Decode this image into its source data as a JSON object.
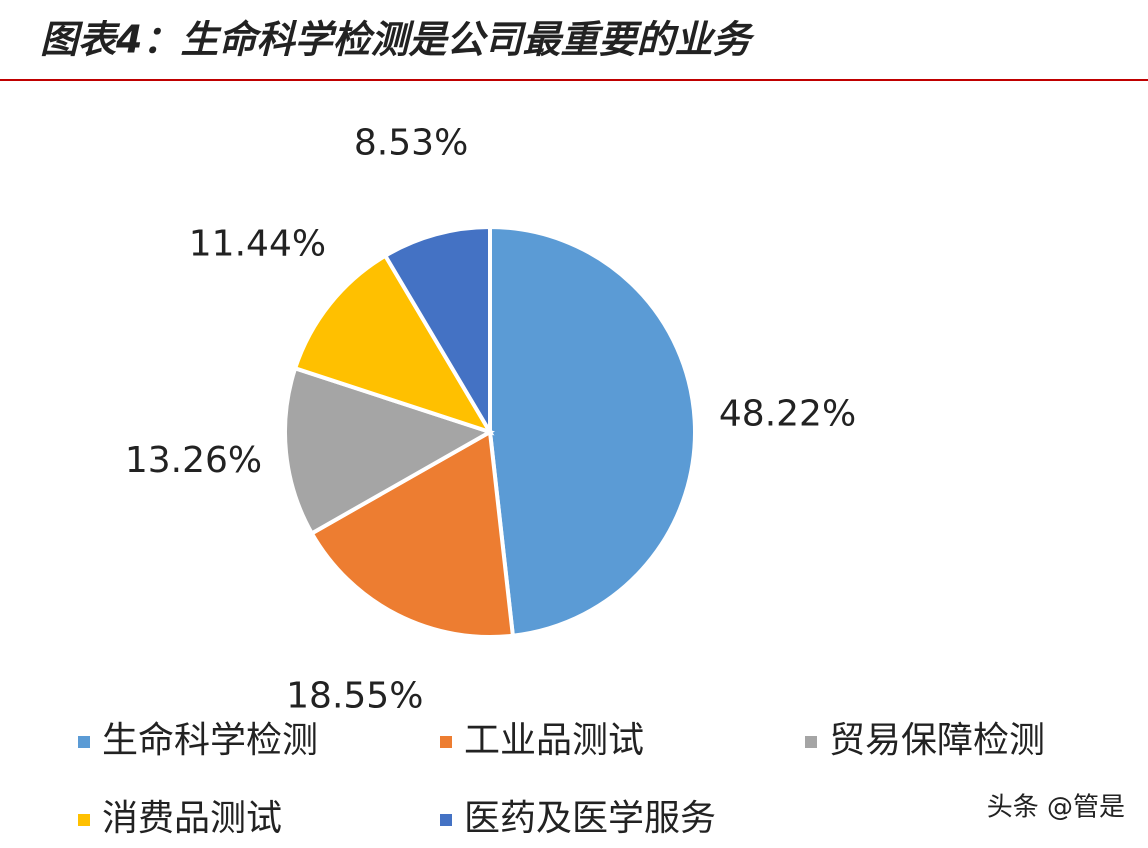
{
  "chart_data": {
    "type": "pie",
    "title": "图表4：生命科学检测是公司最重要的业务",
    "categories": [
      "生命科学检测",
      "工业品测试",
      "贸易保障检测",
      "消费品测试",
      "医药及医学服务"
    ],
    "values": [
      48.22,
      18.55,
      13.26,
      11.44,
      8.53
    ],
    "value_labels": [
      "48.22%",
      "18.55%",
      "13.26%",
      "11.44%",
      "8.53%"
    ],
    "colors": [
      "#5b9bd5",
      "#ed7d31",
      "#a5a5a5",
      "#ffc000",
      "#4472c4"
    ],
    "legend": "bottom",
    "watermark": "头条 @管是"
  }
}
